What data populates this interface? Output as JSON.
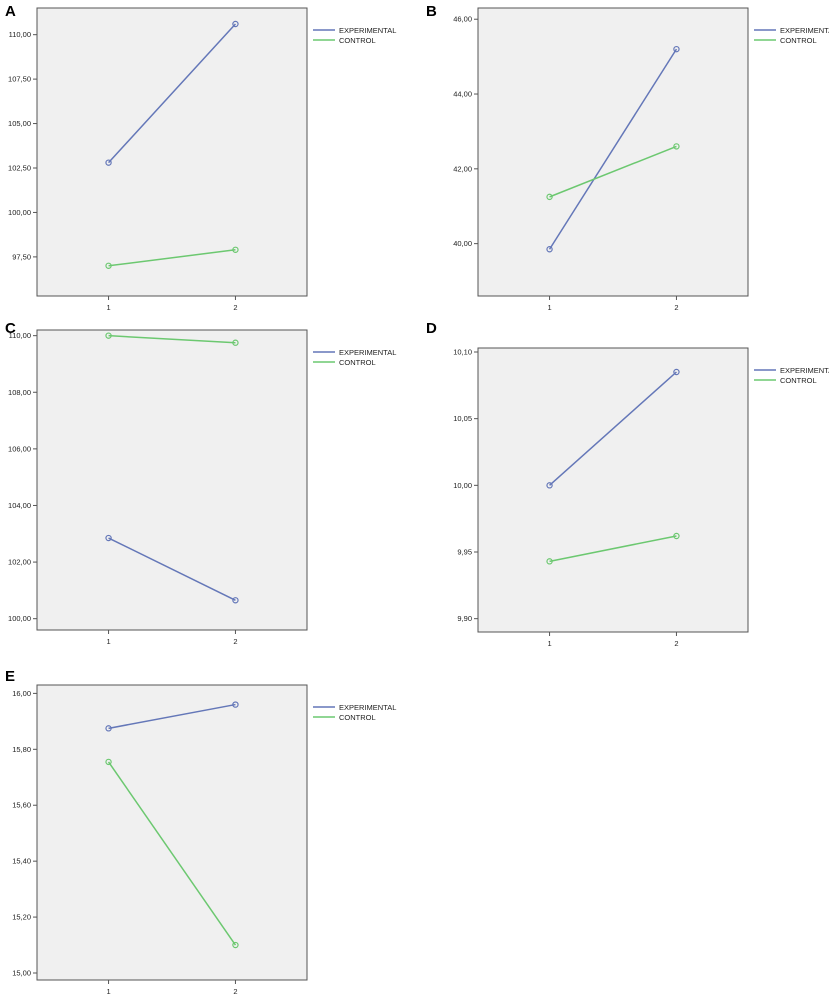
{
  "legend_labels": [
    "EXPERIMENTAL",
    "CONTROL"
  ],
  "colors": {
    "experimental": "#6477B8",
    "control": "#6CC870",
    "plot_bg": "#F0F0F0",
    "frame": "#555555"
  },
  "chart_data": [
    {
      "panel_label": "A",
      "type": "line",
      "x": [
        "1",
        "2"
      ],
      "series": [
        {
          "name": "EXPERIMENTAL",
          "values": [
            102.8,
            110.6
          ]
        },
        {
          "name": "CONTROL",
          "values": [
            97.0,
            97.9
          ]
        }
      ],
      "yticks": [
        "97,50",
        "100,00",
        "102,50",
        "105,00",
        "107,50",
        "110,00"
      ],
      "ylim": [
        95.3,
        111.5
      ],
      "legend": "right"
    },
    {
      "panel_label": "B",
      "type": "line",
      "x": [
        "1",
        "2"
      ],
      "series": [
        {
          "name": "EXPERIMENTAL",
          "values": [
            39.85,
            45.2
          ]
        },
        {
          "name": "CONTROL",
          "values": [
            41.25,
            42.6
          ]
        }
      ],
      "yticks": [
        "40,00",
        "42,00",
        "44,00",
        "46,00"
      ],
      "ylim": [
        38.6,
        46.3
      ],
      "legend": "right"
    },
    {
      "panel_label": "C",
      "type": "line",
      "x": [
        "1",
        "2"
      ],
      "series": [
        {
          "name": "EXPERIMENTAL",
          "values": [
            102.85,
            100.65
          ]
        },
        {
          "name": "CONTROL",
          "values": [
            110.0,
            109.75
          ]
        }
      ],
      "yticks": [
        "100,00",
        "102,00",
        "104,00",
        "106,00",
        "108,00",
        "110,00"
      ],
      "ylim": [
        99.6,
        110.2
      ],
      "legend": "right"
    },
    {
      "panel_label": "D",
      "type": "line",
      "x": [
        "1",
        "2"
      ],
      "series": [
        {
          "name": "EXPERIMENTAL",
          "values": [
            10.0,
            10.085
          ]
        },
        {
          "name": "CONTROL",
          "values": [
            9.943,
            9.962
          ]
        }
      ],
      "yticks": [
        "9,90",
        "9,95",
        "10,00",
        "10,05",
        "10,10"
      ],
      "ylim": [
        9.89,
        10.103
      ],
      "legend": "right"
    },
    {
      "panel_label": "E",
      "type": "line",
      "x": [
        "1",
        "2"
      ],
      "series": [
        {
          "name": "EXPERIMENTAL",
          "values": [
            15.875,
            15.96
          ]
        },
        {
          "name": "CONTROL",
          "values": [
            15.755,
            15.1
          ]
        }
      ],
      "yticks": [
        "15,00",
        "15,20",
        "15,40",
        "15,60",
        "15,80",
        "16,00"
      ],
      "ylim": [
        14.975,
        16.03
      ],
      "legend": "right"
    }
  ]
}
